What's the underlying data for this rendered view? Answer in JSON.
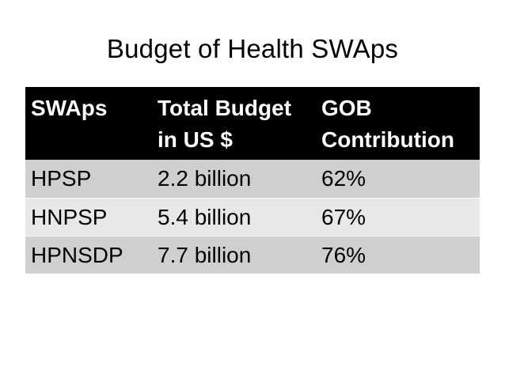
{
  "title": "Budget of Health SWAps",
  "table": {
    "headers": [
      [
        "SWAps"
      ],
      [
        "Total Budget",
        "in US $"
      ],
      [
        "GOB",
        "Contribution"
      ]
    ],
    "rows": [
      [
        "HPSP",
        "2.2 billion",
        "62%"
      ],
      [
        "HNPSP",
        "5.4 billion",
        "67%"
      ],
      [
        "HPNSDP",
        "7.7 billion",
        "76%"
      ]
    ]
  },
  "colors": {
    "header_background": "#000000",
    "header_text": "#ffffff",
    "row_dark": "#cfcfcf",
    "row_light": "#e8e8e8"
  }
}
